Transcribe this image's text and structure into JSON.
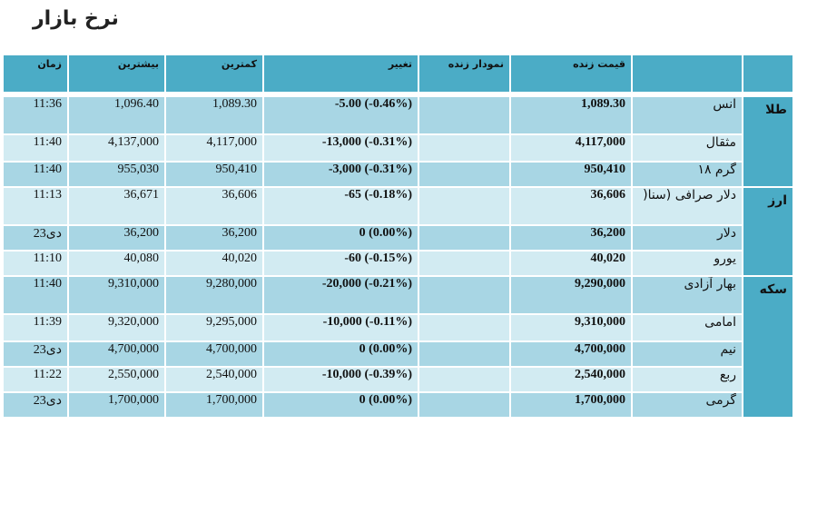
{
  "page_title": "نرخ بازار",
  "headers": {
    "time": "زمان",
    "max": "بیشترین",
    "min": "کمترین",
    "change": "تغییر",
    "chart": "نمودار زنده",
    "price": "قیمت زنده",
    "name": "",
    "group": ""
  },
  "groups": [
    {
      "label": "طلا"
    },
    {
      "label": "ارز"
    },
    {
      "label": "سکه"
    }
  ],
  "rows": [
    {
      "time": "11:36",
      "max": "1,096.40",
      "min": "1,089.30",
      "change": "-5.00 (-0.46%)",
      "price": "1,089.30",
      "name": "انس"
    },
    {
      "time": "11:40",
      "max": "4,137,000",
      "min": "4,117,000",
      "change": "-13,000 (-0.31%)",
      "price": "4,117,000",
      "name": "مثقال"
    },
    {
      "time": "11:40",
      "max": "955,030",
      "min": "950,410",
      "change": "-3,000 (-0.31%)",
      "price": "950,410",
      "name": "گرم ۱۸"
    },
    {
      "time": "11:13",
      "max": "36,671",
      "min": "36,606",
      "change": "-65 (-0.18%)",
      "price": "36,606",
      "name": "دلار صرافی (سنا("
    },
    {
      "time": "23دی",
      "max": "36,200",
      "min": "36,200",
      "change": "0 (0.00%)",
      "price": "36,200",
      "name": "دلار"
    },
    {
      "time": "11:10",
      "max": "40,080",
      "min": "40,020",
      "change": "-60 (-0.15%)",
      "price": "40,020",
      "name": "یورو"
    },
    {
      "time": "11:40",
      "max": "9,310,000",
      "min": "9,280,000",
      "change": "-20,000 (-0.21%)",
      "price": "9,290,000",
      "name": "بهار آزادی"
    },
    {
      "time": "11:39",
      "max": "9,320,000",
      "min": "9,295,000",
      "change": "-10,000 (-0.11%)",
      "price": "9,310,000",
      "name": "امامی"
    },
    {
      "time": "23دی",
      "max": "4,700,000",
      "min": "4,700,000",
      "change": "0 (0.00%)",
      "price": "4,700,000",
      "name": "نیم"
    },
    {
      "time": "11:22",
      "max": "2,550,000",
      "min": "2,540,000",
      "change": "-10,000 (-0.39%)",
      "price": "2,540,000",
      "name": "ربع"
    },
    {
      "time": "23دی",
      "max": "1,700,000",
      "min": "1,700,000",
      "change": "0 (0.00%)",
      "price": "1,700,000",
      "name": "گرمی"
    }
  ]
}
